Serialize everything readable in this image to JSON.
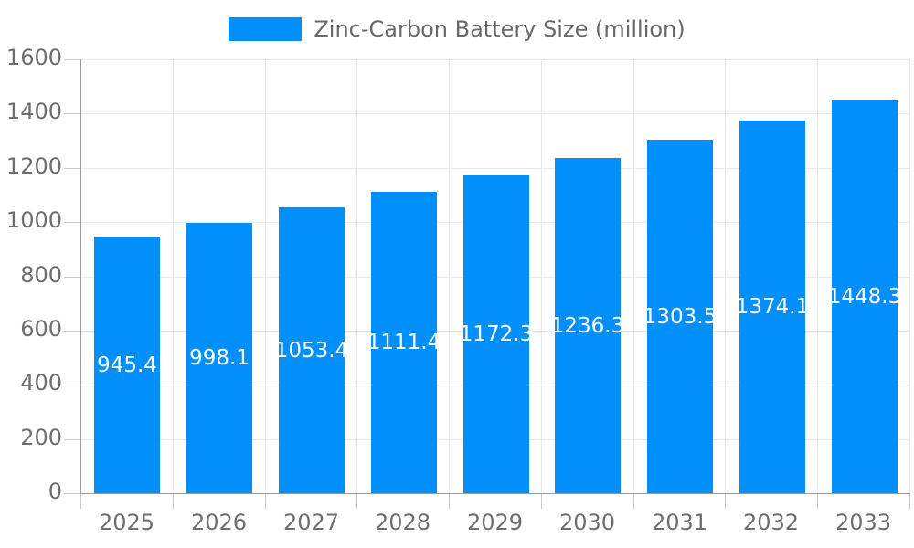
{
  "legend": {
    "label": "Zinc-Carbon Battery Size (million)"
  },
  "chart_data": {
    "type": "bar",
    "title": "Zinc-Carbon Battery Size (million)",
    "series_name": "Zinc-Carbon Battery Size (million)",
    "categories": [
      "2025",
      "2026",
      "2027",
      "2028",
      "2029",
      "2030",
      "2031",
      "2032",
      "2033"
    ],
    "values": [
      945.4,
      998.1,
      1053.4,
      1111.4,
      1172.3,
      1236.3,
      1303.5,
      1374.1,
      1448.3
    ],
    "value_labels": [
      "945.4",
      "998.1",
      "1053.4",
      "1111.4",
      "1172.3",
      "1236.3",
      "1303.5",
      "1374.1",
      "1448.3"
    ],
    "xlabel": "",
    "ylabel": "",
    "ylim": [
      0,
      1600
    ],
    "ytick_step": 200,
    "ytick_labels": [
      "0",
      "200",
      "400",
      "600",
      "800",
      "1000",
      "1200",
      "1400",
      "1600"
    ],
    "grid": true,
    "legend_position": "top",
    "colors": {
      "bar": "#008FFB",
      "value_label_text": "#FFFFFF",
      "axis_text": "#6E6E6E",
      "title_text": "#66696E",
      "grid_line": "#E8E8E8",
      "axis_line": "#9A9A9A",
      "tick_mark": "#C9C9C9",
      "background": "#FFFFFF"
    }
  }
}
